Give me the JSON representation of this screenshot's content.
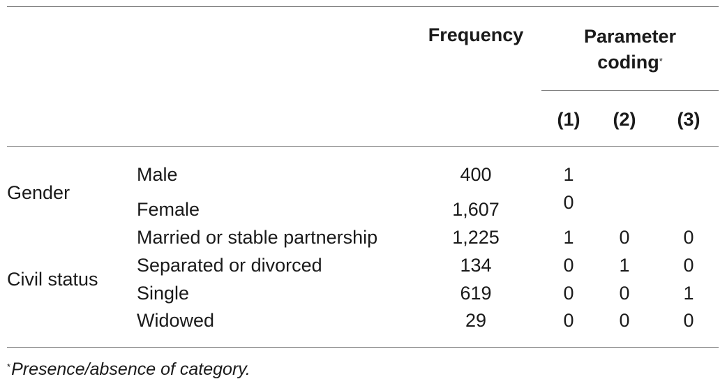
{
  "table": {
    "header": {
      "frequency": "Frequency",
      "parameter_line1": "Parameter",
      "parameter_line2": "coding",
      "parameter_marker": "*",
      "codes": [
        "(1)",
        "(2)",
        "(3)"
      ]
    },
    "groups": [
      {
        "label": "Gender",
        "rows": [
          {
            "category": "Male",
            "frequency": "400",
            "codes": [
              "1",
              "",
              ""
            ]
          },
          {
            "category": "Female",
            "frequency": "1,607",
            "codes": [
              "0",
              "",
              ""
            ]
          }
        ]
      },
      {
        "label": "Civil status",
        "rows": [
          {
            "category": "Married or stable partnership",
            "frequency": "1,225",
            "codes": [
              "1",
              "0",
              "0"
            ]
          },
          {
            "category": "Separated or divorced",
            "frequency": "134",
            "codes": [
              "0",
              "1",
              "0"
            ]
          },
          {
            "category": "Single",
            "frequency": "619",
            "codes": [
              "0",
              "0",
              "1"
            ]
          },
          {
            "category": "Widowed",
            "frequency": "29",
            "codes": [
              "0",
              "0",
              "0"
            ]
          }
        ]
      }
    ]
  },
  "footnote": {
    "marker": "*",
    "text": "Presence/absence of category."
  }
}
